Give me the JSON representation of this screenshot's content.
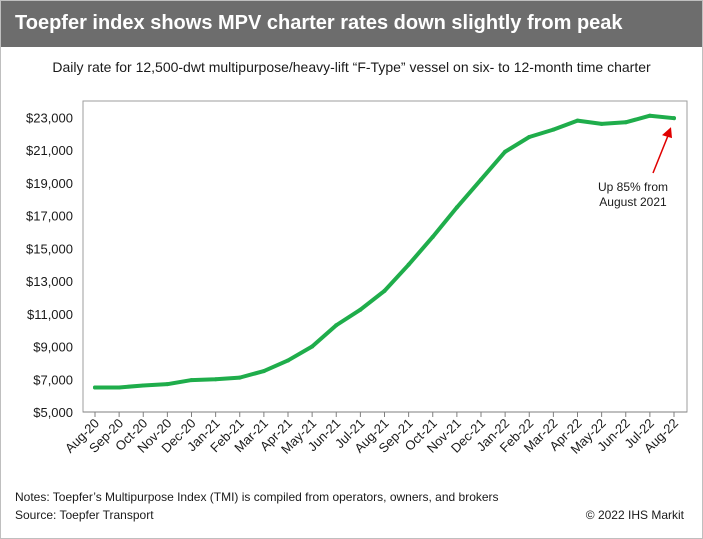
{
  "header": {
    "title": "Toepfer index shows MPV charter rates down slightly from peak",
    "subtitle": "Daily rate for 12,500-dwt multipurpose/heavy-lift “F-Type” vessel on six- to 12-month time charter"
  },
  "footer": {
    "notes": "Notes: Toepfer’s Multipurpose Index (TMI) is compiled from operators, owners, and brokers",
    "source": "Source: Toepfer Transport",
    "copyright": "© 2022 IHS Markit"
  },
  "colors": {
    "header_bg": "#6d6d6d",
    "line": "#1fad4b",
    "arrow": "#e00000"
  },
  "chart_data": {
    "type": "line",
    "title": "Toepfer index shows MPV charter rates down slightly from peak",
    "subtitle": "Daily rate for 12,500-dwt multipurpose/heavy-lift “F-Type” vessel on six- to 12-month time charter",
    "xlabel": "",
    "ylabel": "",
    "categories": [
      "Aug-20",
      "Sep-20",
      "Oct-20",
      "Nov-20",
      "Dec-20",
      "Jan-21",
      "Feb-21",
      "Mar-21",
      "Apr-21",
      "May-21",
      "Jun-21",
      "Jul-21",
      "Aug-21",
      "Sep-21",
      "Oct-21",
      "Nov-21",
      "Dec-21",
      "Jan-22",
      "Feb-22",
      "Mar-22",
      "Apr-22",
      "May-22",
      "Jun-22",
      "Jul-22",
      "Aug-22"
    ],
    "series": [
      {
        "name": "Toepfer Multipurpose Index (TMI)",
        "values": [
          6500,
          6500,
          6620,
          6700,
          6950,
          7000,
          7100,
          7500,
          8150,
          9000,
          10300,
          11250,
          12400,
          14000,
          15700,
          17500,
          19200,
          20900,
          21800,
          22250,
          22800,
          22600,
          22700,
          23100,
          22950
        ]
      }
    ],
    "ylim": [
      5000,
      24000
    ],
    "yticks": [
      5000,
      7000,
      9000,
      11000,
      13000,
      15000,
      17000,
      19000,
      21000,
      23000
    ],
    "ytick_labels": [
      "$5,000",
      "$7,000",
      "$9,000",
      "$11,000",
      "$13,000",
      "$15,000",
      "$17,000",
      "$19,000",
      "$21,000",
      "$23,000"
    ],
    "grid": false,
    "legend": "none",
    "annotation": {
      "lines": [
        "Up 85% from",
        "August 2021"
      ],
      "target": "Aug-22"
    }
  }
}
